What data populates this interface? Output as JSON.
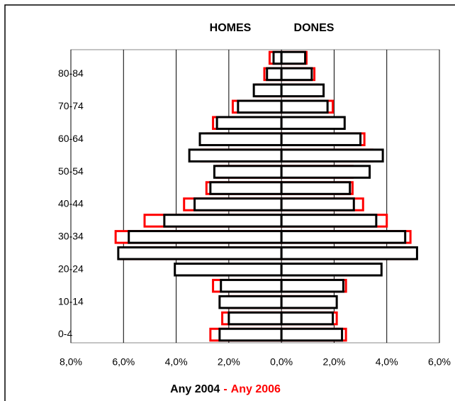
{
  "chart_data": {
    "type": "pyramid",
    "left_label": "HOMES",
    "right_label": "DONES",
    "categories": [
      "0-4",
      null,
      "10-14",
      null,
      "20-24",
      null,
      "30-34",
      null,
      "40-44",
      null,
      "50-54",
      null,
      "60-64",
      null,
      "70-74",
      null,
      "80-84",
      null
    ],
    "series": [
      {
        "name": "Any 2006",
        "color": "#ff0000",
        "values": [
          -2.7,
          -2.25,
          -2.05,
          -2.6,
          -3.6,
          -6.1,
          -6.3,
          -5.2,
          -3.7,
          -2.85,
          -2.45,
          -3.05,
          -2.85,
          -2.6,
          -1.85,
          -0.95,
          -0.65,
          -0.45
        ],
        "values_right": [
          2.45,
          2.1,
          1.85,
          2.45,
          3.35,
          5.0,
          4.9,
          4.0,
          3.1,
          2.7,
          2.7,
          3.45,
          3.15,
          2.3,
          1.95,
          1.4,
          1.25,
          0.95
        ]
      },
      {
        "name": "Any 2004",
        "color": "#000000",
        "values": [
          -2.35,
          -2.0,
          -2.35,
          -2.3,
          -4.05,
          -6.2,
          -5.8,
          -4.45,
          -3.3,
          -2.7,
          -2.55,
          -3.5,
          -3.1,
          -2.45,
          -1.65,
          -1.05,
          -0.55,
          -0.3
        ],
        "values_right": [
          2.3,
          1.95,
          2.1,
          2.35,
          3.8,
          5.15,
          4.7,
          3.6,
          2.75,
          2.6,
          3.35,
          3.85,
          3.0,
          2.4,
          1.75,
          1.6,
          1.15,
          0.9
        ]
      }
    ],
    "legend_separator": "-",
    "xlim": [
      -8,
      6
    ],
    "xticks": [
      {
        "value": -8,
        "label": "8,0%"
      },
      {
        "value": -6,
        "label": "6,0%"
      },
      {
        "value": -4,
        "label": "4,0%"
      },
      {
        "value": -2,
        "label": "2,0%"
      },
      {
        "value": 0,
        "label": "0,0%"
      },
      {
        "value": 2,
        "label": "2,0%"
      },
      {
        "value": 4,
        "label": "4,0%"
      },
      {
        "value": 6,
        "label": "6,0%"
      }
    ],
    "grid": true
  }
}
